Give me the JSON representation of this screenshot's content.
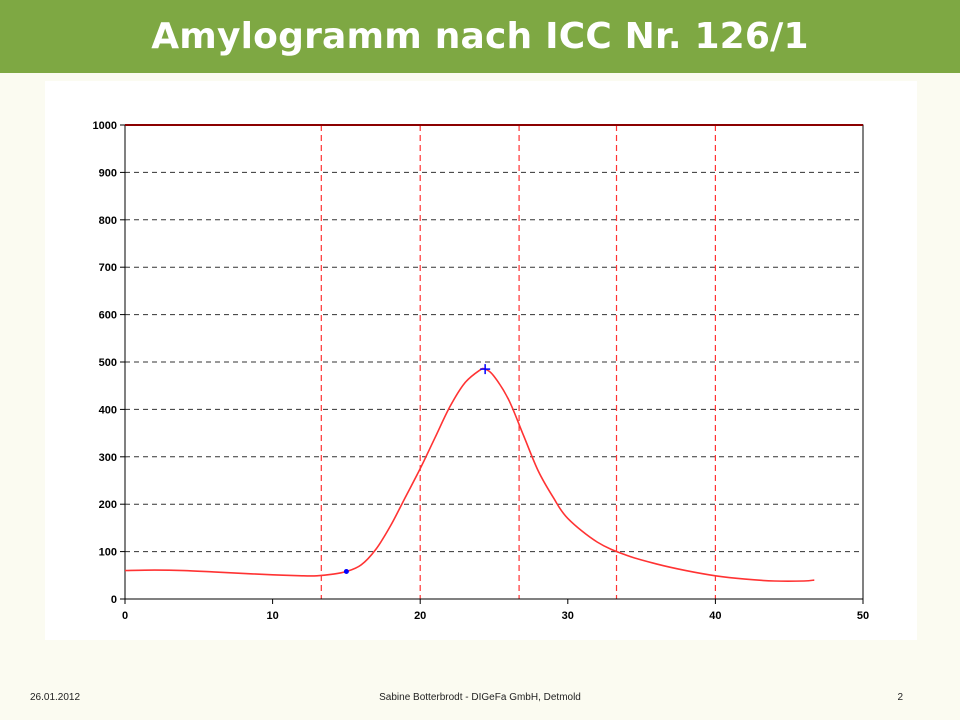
{
  "slide": {
    "title": "Amylogramm nach ICC Nr. 126/1",
    "footer": {
      "date": "26.01.2012",
      "author": "Sabine Botterbrodt - DIGeFa GmbH, Detmold",
      "page": "2"
    }
  },
  "chart_data": {
    "type": "line",
    "title": "",
    "xlabel": "",
    "ylabel": "",
    "xlim": [
      0,
      50
    ],
    "ylim": [
      0,
      1000
    ],
    "x_ticks": [
      0,
      10,
      20,
      30,
      40,
      50
    ],
    "y_ticks": [
      0,
      100,
      200,
      300,
      400,
      500,
      600,
      700,
      800,
      900,
      1000
    ],
    "grid": "horizontal dashed",
    "legend": "none",
    "reference_lines": {
      "horizontal": [
        1000
      ],
      "vertical": [
        13.3,
        20,
        26.7,
        33.3,
        40
      ]
    },
    "series": [
      {
        "color": "#ff3333",
        "x": [
          0,
          2,
          4,
          6,
          8,
          10,
          12,
          13,
          14,
          15,
          16,
          17,
          18,
          19,
          20,
          21,
          22,
          23,
          24,
          24.4,
          25,
          26,
          27,
          28,
          29,
          30,
          32,
          34,
          36,
          38,
          40,
          42,
          44,
          46,
          46.7
        ],
        "y": [
          60,
          61,
          60,
          57,
          54,
          51,
          49,
          49,
          52,
          58,
          72,
          105,
          155,
          215,
          275,
          340,
          405,
          455,
          482,
          485,
          470,
          420,
          345,
          270,
          215,
          170,
          120,
          92,
          74,
          60,
          49,
          42,
          38,
          38,
          40
        ]
      }
    ],
    "markers": [
      {
        "x": 15,
        "y": 58,
        "shape": "dot",
        "color": "#0000ff"
      },
      {
        "x": 24.4,
        "y": 485,
        "shape": "plus",
        "color": "#0000ff"
      }
    ]
  }
}
